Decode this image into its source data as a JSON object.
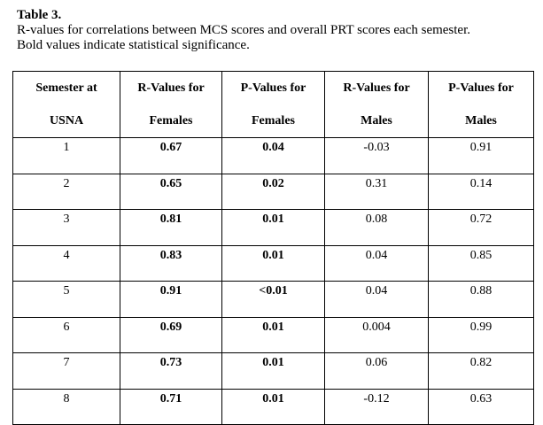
{
  "caption": {
    "title": "Table 3.",
    "line1": "R-values for correlations between MCS scores and overall PRT scores each semester.",
    "line2": "Bold values indicate statistical significance."
  },
  "table": {
    "headers": [
      {
        "line1": "Semester at",
        "line2": "USNA"
      },
      {
        "line1": "R-Values for",
        "line2": "Females"
      },
      {
        "line1": "P-Values for",
        "line2": "Females"
      },
      {
        "line1": "R-Values for",
        "line2": "Males"
      },
      {
        "line1": "P-Values for",
        "line2": "Males"
      }
    ],
    "rows": [
      [
        "1",
        "0.67",
        "0.04",
        "-0.03",
        "0.91"
      ],
      [
        "2",
        "0.65",
        "0.02",
        "0.31",
        "0.14"
      ],
      [
        "3",
        "0.81",
        "0.01",
        "0.08",
        "0.72"
      ],
      [
        "4",
        "0.83",
        "0.01",
        "0.04",
        "0.85"
      ],
      [
        "5",
        "0.91",
        "<0.01",
        "0.04",
        "0.88"
      ],
      [
        "6",
        "0.69",
        "0.01",
        "0.004",
        "0.99"
      ],
      [
        "7",
        "0.73",
        "0.01",
        "0.06",
        "0.82"
      ],
      [
        "8",
        "0.71",
        "0.01",
        "-0.12",
        "0.63"
      ]
    ]
  }
}
